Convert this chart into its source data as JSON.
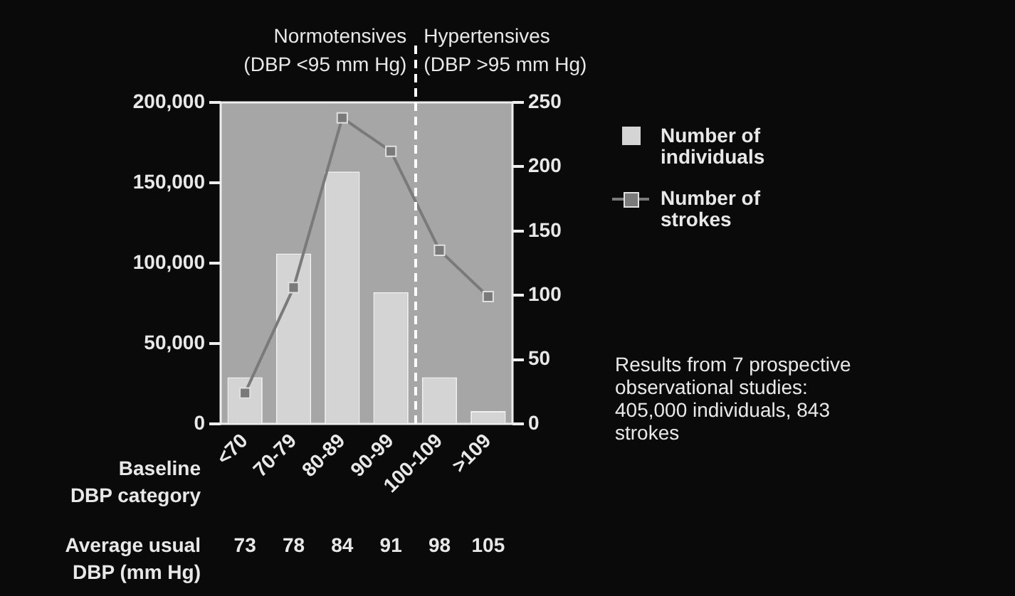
{
  "chart_data": {
    "type": "bar",
    "xlabel": "Baseline\nDBP category",
    "categories": [
      "<70",
      "70-79",
      "80-89",
      "90-99",
      "100-109",
      ">109"
    ],
    "series": [
      {
        "name": "Number of individuals",
        "color": "#d4d4d4",
        "values": [
          29000,
          106000,
          157000,
          82000,
          29000,
          8000
        ]
      },
      {
        "name": "Number of strokes",
        "type": "line",
        "axis": "y2",
        "color": "#7a7a7a",
        "marker": "square",
        "values": [
          24,
          106,
          238,
          212,
          135,
          99
        ]
      }
    ],
    "ylim": [
      0,
      200000
    ],
    "yticks": [
      {
        "value": 0,
        "label": "0"
      },
      {
        "value": 50000,
        "label": "50,000"
      },
      {
        "value": 100000,
        "label": "100,000"
      },
      {
        "value": 150000,
        "label": "150,000"
      },
      {
        "value": 200000,
        "label": "200,000"
      }
    ],
    "y2lim": [
      0,
      250
    ],
    "y2ticks": [
      0,
      50,
      100,
      150,
      200,
      250
    ],
    "legend": "right",
    "annotations": [
      "Normotensives\n(DBP <95 mm Hg)",
      "Hypertensives\n(DBP >95 mm Hg)",
      "Average usual\nDBP (mm Hg)",
      "Results from 7 prospective observational studies: 405,000 individuals, 843 strokes",
      "73",
      "78",
      "84",
      "91",
      "98",
      "105"
    ]
  }
}
